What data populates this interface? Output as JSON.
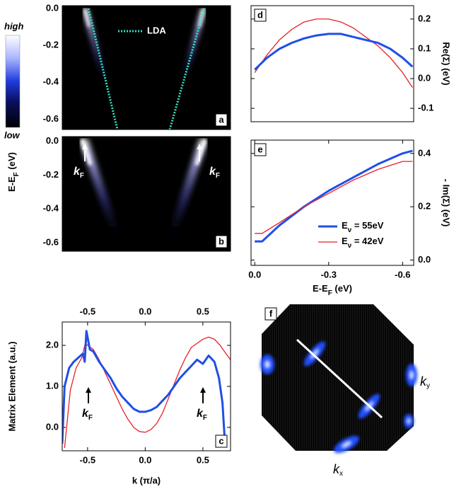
{
  "chart_data": [
    {
      "type": "heatmap",
      "panel": "a",
      "ylim": [
        -0.656,
        0.015
      ],
      "yticks": [
        {
          "value": 0,
          "label": "0.0"
        },
        -0.2,
        -0.4,
        -0.6
      ],
      "colorbar": {
        "high": "high",
        "low": "low"
      },
      "legend": "LDA"
    },
    {
      "type": "heatmap",
      "panel": "b",
      "ylim": [
        -0.65,
        0.027
      ],
      "yticks": [
        {
          "value": 0,
          "label": "0.0"
        },
        -0.2,
        -0.4,
        -0.6
      ],
      "ylabel": [
        "E-E",
        "F",
        " (eV)"
      ],
      "annotations": [
        [
          "k",
          "F"
        ],
        [
          "k",
          "F"
        ]
      ]
    },
    {
      "type": "line",
      "panel": "c",
      "xlim": [
        -0.72,
        0.74
      ],
      "ylim": [
        -0.57,
        2.57
      ],
      "xticks": [
        -0.5,
        {
          "value": 0,
          "label": "0.0"
        },
        0.5
      ],
      "yticks": [
        {
          "value": 0,
          "label": "0.0"
        },
        {
          "value": 1,
          "label": "1.0"
        },
        {
          "value": 2,
          "label": "2.0"
        }
      ],
      "xlabel": "k (π/a)",
      "ylabel": "Matrix Element (a.u.)",
      "annotations": [
        [
          "k",
          "F"
        ],
        [
          "k",
          "F"
        ]
      ],
      "series": [
        {
          "color": "#e8202a",
          "width": 1.3,
          "x": [
            -0.7,
            -0.65,
            -0.6,
            -0.55,
            -0.52,
            -0.5,
            -0.45,
            -0.4,
            -0.35,
            -0.3,
            -0.25,
            -0.2,
            -0.15,
            -0.1,
            -0.05,
            0,
            0.05,
            0.1,
            0.15,
            0.2,
            0.25,
            0.3,
            0.35,
            0.4,
            0.45,
            0.5,
            0.55,
            0.6,
            0.65,
            0.7,
            0.74
          ],
          "values": [
            -0.5,
            0.9,
            1.45,
            1.7,
            2.05,
            2.0,
            1.9,
            1.65,
            1.35,
            1.05,
            0.75,
            0.45,
            0.2,
            0.0,
            -0.1,
            -0.12,
            -0.05,
            0.1,
            0.35,
            0.7,
            1.05,
            1.4,
            1.7,
            1.95,
            2.05,
            2.15,
            2.2,
            2.15,
            2.0,
            1.8,
            1.65
          ]
        },
        {
          "color": "#1f4fe6",
          "width": 3,
          "x": [
            -0.72,
            -0.7,
            -0.66,
            -0.62,
            -0.58,
            -0.54,
            -0.525,
            -0.51,
            -0.48,
            -0.45,
            -0.4,
            -0.35,
            -0.3,
            -0.25,
            -0.2,
            -0.15,
            -0.1,
            -0.05,
            0,
            0.05,
            0.1,
            0.15,
            0.2,
            0.25,
            0.3,
            0.35,
            0.4,
            0.45,
            0.5,
            0.55,
            0.6,
            0.64,
            0.67,
            0.69
          ],
          "values": [
            -0.4,
            1.0,
            1.45,
            1.6,
            1.7,
            1.8,
            1.6,
            2.35,
            1.9,
            1.85,
            1.6,
            1.4,
            1.2,
            0.95,
            0.75,
            0.6,
            0.45,
            0.38,
            0.38,
            0.42,
            0.5,
            0.65,
            0.8,
            1.0,
            1.2,
            1.35,
            1.5,
            1.65,
            1.55,
            1.75,
            1.6,
            1.2,
            0.6,
            -0.3
          ]
        }
      ]
    },
    {
      "type": "line",
      "panel": "d",
      "xlim": [
        0.015,
        -0.645
      ],
      "ylim": [
        -0.145,
        0.245
      ],
      "yticks": [
        {
          "value": 0.2,
          "label": "0.2"
        },
        {
          "value": 0.1,
          "label": "0.1"
        },
        {
          "value": 0,
          "label": "0.0"
        },
        -0.1
      ],
      "ylabel": "Re(Σ) (eV)",
      "series": [
        {
          "color": "#e8202a",
          "width": 1.3,
          "x": [
            0,
            -0.05,
            -0.1,
            -0.15,
            -0.2,
            -0.25,
            -0.3,
            -0.35,
            -0.4,
            -0.45,
            -0.5,
            -0.55,
            -0.6,
            -0.64
          ],
          "values": [
            0.02,
            0.08,
            0.13,
            0.165,
            0.19,
            0.2,
            0.2,
            0.19,
            0.17,
            0.14,
            0.11,
            0.07,
            0.02,
            -0.03
          ]
        },
        {
          "color": "#1f4fe6",
          "width": 3,
          "x": [
            0,
            -0.05,
            -0.1,
            -0.15,
            -0.2,
            -0.25,
            -0.3,
            -0.35,
            -0.4,
            -0.45,
            -0.5,
            -0.55,
            -0.6,
            -0.64
          ],
          "values": [
            0.03,
            0.07,
            0.1,
            0.12,
            0.135,
            0.145,
            0.15,
            0.15,
            0.14,
            0.13,
            0.12,
            0.1,
            0.07,
            0.04
          ]
        }
      ]
    },
    {
      "type": "line",
      "panel": "e",
      "xlim": [
        0.015,
        -0.645
      ],
      "ylim": [
        -0.02,
        0.45
      ],
      "xticks": [
        {
          "value": 0,
          "label": "0.0"
        },
        -0.3,
        -0.6
      ],
      "yticks": [
        {
          "value": 0,
          "label": "0.0"
        },
        0.2,
        0.4
      ],
      "xlabel": [
        "E-E",
        "F",
        " (eV)"
      ],
      "ylabel": "- Im(Σ) (eV)",
      "series": [
        {
          "name": [
            "E",
            "ν",
            " = 55eV"
          ],
          "color": "#1f4fe6",
          "width": 3,
          "x": [
            0,
            -0.03,
            -0.1,
            -0.2,
            -0.3,
            -0.4,
            -0.5,
            -0.6,
            -0.64
          ],
          "values": [
            0.07,
            0.07,
            0.13,
            0.2,
            0.26,
            0.31,
            0.36,
            0.4,
            0.41
          ]
        },
        {
          "name": [
            "E",
            "ν",
            " = 42eV"
          ],
          "color": "#e8202a",
          "width": 1.3,
          "x": [
            0,
            -0.03,
            -0.1,
            -0.2,
            -0.3,
            -0.4,
            -0.5,
            -0.6,
            -0.64
          ],
          "values": [
            0.1,
            0.1,
            0.14,
            0.2,
            0.25,
            0.3,
            0.34,
            0.37,
            0.37
          ]
        }
      ]
    },
    {
      "type": "map",
      "panel": "f",
      "xlabel": [
        "k",
        "x"
      ],
      "ylabel": [
        "k",
        "y"
      ]
    }
  ]
}
